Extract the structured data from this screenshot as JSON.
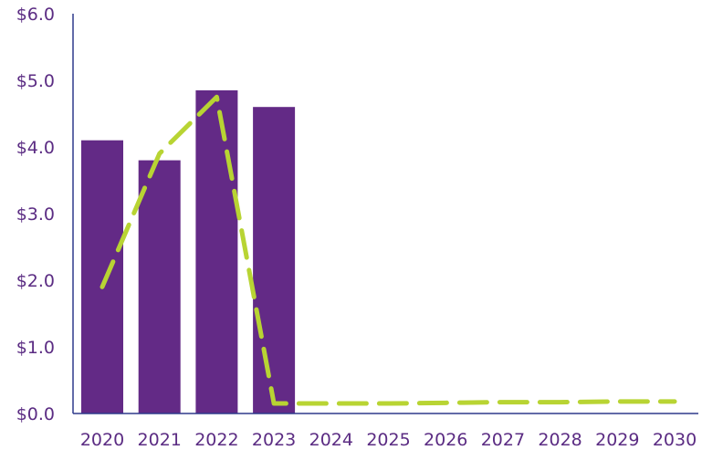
{
  "chart_data": {
    "type": "bar",
    "title": "",
    "xlabel": "",
    "ylabel": "",
    "categories": [
      "2020",
      "2021",
      "2022",
      "2023",
      "2024",
      "2025",
      "2026",
      "2027",
      "2028",
      "2029",
      "2030"
    ],
    "y_ticks": [
      "$0.0",
      "$1.0",
      "$2.0",
      "$3.0",
      "$4.0",
      "$5.0",
      "$6.0"
    ],
    "ylim": [
      0,
      6
    ],
    "grid": false,
    "series": [
      {
        "type": "bar",
        "values": [
          4.1,
          3.8,
          4.85,
          4.6,
          null,
          null,
          null,
          null,
          null,
          null,
          null
        ],
        "color": "#632a86"
      },
      {
        "type": "line",
        "style": "dashed",
        "values": [
          1.9,
          3.9,
          4.75,
          0.15,
          0.15,
          0.15,
          0.16,
          0.17,
          0.17,
          0.18,
          0.18
        ],
        "color": "#b8d433"
      }
    ],
    "axis_color": "#2e3a8c",
    "label_color": "#5b2c83"
  }
}
